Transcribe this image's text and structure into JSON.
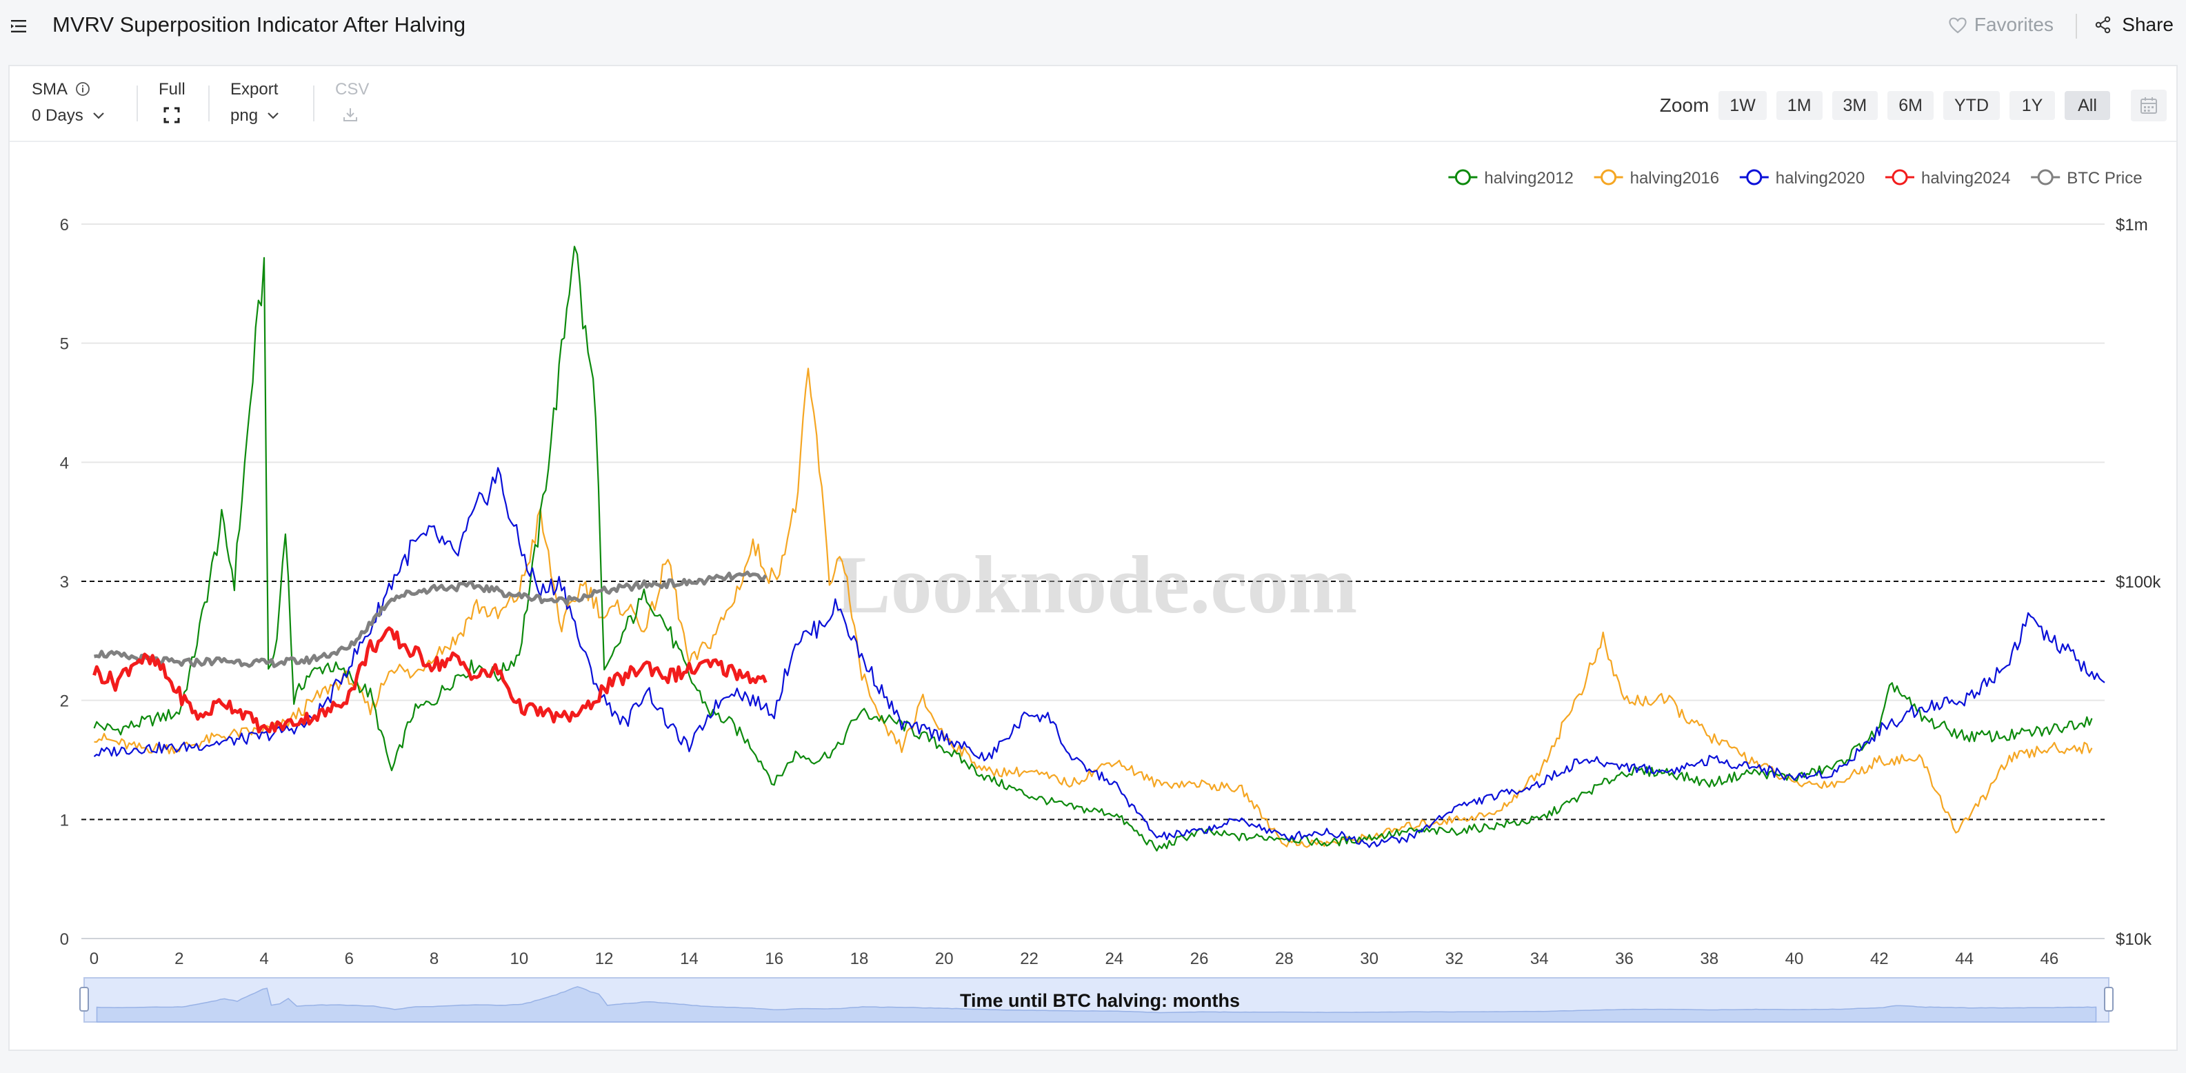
{
  "header": {
    "title": "MVRV Superposition Indicator After Halving",
    "favorites_label": "Favorites",
    "share_label": "Share",
    "icons": [
      "menu-icon",
      "heart-icon",
      "share-icon"
    ]
  },
  "toolbar": {
    "sma_label": "SMA",
    "sma_value": "0 Days",
    "full_label": "Full",
    "export_label": "Export",
    "export_value": "png",
    "csv_label": "CSV",
    "zoom_label": "Zoom",
    "zoom_options": [
      "1W",
      "1M",
      "3M",
      "6M",
      "YTD",
      "1Y",
      "All"
    ],
    "zoom_active": "All"
  },
  "watermark": "Looknode.com",
  "chart_data": {
    "type": "line",
    "title": "",
    "xlabel": "Time until BTC halving: months",
    "ylabel": "",
    "x_range": [
      -0.3,
      47.3
    ],
    "x_ticks": [
      0,
      2,
      4,
      6,
      8,
      10,
      12,
      14,
      16,
      18,
      20,
      22,
      24,
      26,
      28,
      30,
      32,
      34,
      36,
      38,
      40,
      42,
      44,
      46
    ],
    "y_left": {
      "range": [
        0,
        6
      ],
      "ticks": [
        0,
        1,
        2,
        3,
        4,
        5,
        6
      ]
    },
    "y_right": {
      "scale": "log",
      "range": [
        10000,
        1000000
      ],
      "tick_labels": [
        "$10k",
        "$100k",
        "$1m"
      ],
      "tick_values": [
        10000,
        100000,
        1000000
      ]
    },
    "reference_lines": [
      1,
      3
    ],
    "grid": true,
    "legend_position": "top-right",
    "series": [
      {
        "name": "halving2012",
        "color": "#0d8a0d",
        "axis": "left",
        "points": [
          [
            0,
            1.8
          ],
          [
            0.5,
            1.75
          ],
          [
            1,
            1.8
          ],
          [
            1.5,
            1.85
          ],
          [
            2,
            1.9
          ],
          [
            2.3,
            2.3
          ],
          [
            2.6,
            2.8
          ],
          [
            3,
            3.5
          ],
          [
            3.3,
            3.0
          ],
          [
            3.6,
            4.2
          ],
          [
            3.8,
            5.0
          ],
          [
            4,
            5.65
          ],
          [
            4.1,
            2.2
          ],
          [
            4.3,
            2.5
          ],
          [
            4.5,
            3.5
          ],
          [
            4.7,
            2.0
          ],
          [
            5,
            2.2
          ],
          [
            5.5,
            2.3
          ],
          [
            6,
            2.2
          ],
          [
            6.5,
            2.05
          ],
          [
            7,
            1.4
          ],
          [
            7.5,
            1.9
          ],
          [
            8,
            2.0
          ],
          [
            8.5,
            2.2
          ],
          [
            9,
            2.3
          ],
          [
            9.5,
            2.2
          ],
          [
            10,
            2.4
          ],
          [
            10.5,
            3.5
          ],
          [
            11,
            4.9
          ],
          [
            11.3,
            5.9
          ],
          [
            11.5,
            5.2
          ],
          [
            11.8,
            4.5
          ],
          [
            12,
            2.2
          ],
          [
            12.5,
            2.6
          ],
          [
            13,
            2.9
          ],
          [
            13.5,
            2.6
          ],
          [
            14,
            2.2
          ],
          [
            14.5,
            1.9
          ],
          [
            15,
            1.8
          ],
          [
            15.5,
            1.6
          ],
          [
            16,
            1.3
          ],
          [
            16.5,
            1.55
          ],
          [
            17,
            1.5
          ],
          [
            17.5,
            1.6
          ],
          [
            18,
            1.9
          ],
          [
            19,
            1.8
          ],
          [
            20,
            1.6
          ],
          [
            21,
            1.35
          ],
          [
            22,
            1.2
          ],
          [
            23,
            1.1
          ],
          [
            24,
            1.05
          ],
          [
            25,
            0.75
          ],
          [
            26,
            0.9
          ],
          [
            27,
            0.85
          ],
          [
            28,
            0.85
          ],
          [
            29,
            0.8
          ],
          [
            30,
            0.85
          ],
          [
            31,
            0.9
          ],
          [
            32,
            0.9
          ],
          [
            33,
            0.95
          ],
          [
            34,
            1.0
          ],
          [
            35,
            1.2
          ],
          [
            36,
            1.4
          ],
          [
            37,
            1.4
          ],
          [
            38,
            1.3
          ],
          [
            39,
            1.4
          ],
          [
            40,
            1.35
          ],
          [
            41,
            1.45
          ],
          [
            42,
            1.75
          ],
          [
            42.3,
            2.15
          ],
          [
            43,
            1.85
          ],
          [
            44,
            1.7
          ],
          [
            45,
            1.7
          ],
          [
            46,
            1.75
          ],
          [
            47,
            1.85
          ]
        ]
      },
      {
        "name": "halving2016",
        "color": "#f5a623",
        "axis": "left",
        "points": [
          [
            0,
            1.7
          ],
          [
            1,
            1.6
          ],
          [
            2,
            1.6
          ],
          [
            3,
            1.7
          ],
          [
            4,
            1.75
          ],
          [
            4.5,
            1.8
          ],
          [
            5,
            1.95
          ],
          [
            5.5,
            2.1
          ],
          [
            6,
            2.2
          ],
          [
            6.5,
            1.9
          ],
          [
            7,
            2.3
          ],
          [
            7.5,
            2.2
          ],
          [
            8,
            2.4
          ],
          [
            8.5,
            2.5
          ],
          [
            9,
            2.8
          ],
          [
            9.5,
            2.7
          ],
          [
            10,
            2.9
          ],
          [
            10.5,
            3.55
          ],
          [
            11,
            2.6
          ],
          [
            11.5,
            3.0
          ],
          [
            12,
            2.7
          ],
          [
            12.5,
            2.8
          ],
          [
            13,
            2.6
          ],
          [
            13.5,
            3.2
          ],
          [
            14,
            2.3
          ],
          [
            14.5,
            2.5
          ],
          [
            15,
            2.8
          ],
          [
            15.5,
            3.3
          ],
          [
            16,
            3.0
          ],
          [
            16.5,
            3.6
          ],
          [
            16.8,
            4.7
          ],
          [
            17,
            4.2
          ],
          [
            17.3,
            3.0
          ],
          [
            17.6,
            3.25
          ],
          [
            18,
            2.3
          ],
          [
            18.5,
            1.8
          ],
          [
            19,
            1.6
          ],
          [
            19.5,
            2.0
          ],
          [
            20,
            1.7
          ],
          [
            21,
            1.4
          ],
          [
            22,
            1.4
          ],
          [
            23,
            1.3
          ],
          [
            24,
            1.5
          ],
          [
            25,
            1.3
          ],
          [
            26,
            1.3
          ],
          [
            27,
            1.25
          ],
          [
            28,
            0.8
          ],
          [
            29,
            0.8
          ],
          [
            30,
            0.85
          ],
          [
            31,
            0.95
          ],
          [
            32,
            1.0
          ],
          [
            33,
            1.05
          ],
          [
            34,
            1.4
          ],
          [
            35,
            2.1
          ],
          [
            35.5,
            2.5
          ],
          [
            36,
            2.0
          ],
          [
            36.5,
            2.0
          ],
          [
            37,
            2.0
          ],
          [
            38,
            1.7
          ],
          [
            39,
            1.5
          ],
          [
            40,
            1.3
          ],
          [
            41,
            1.3
          ],
          [
            42,
            1.5
          ],
          [
            43,
            1.5
          ],
          [
            43.8,
            0.9
          ],
          [
            44.5,
            1.2
          ],
          [
            45,
            1.5
          ],
          [
            46,
            1.6
          ],
          [
            47,
            1.6
          ]
        ]
      },
      {
        "name": "halving2020",
        "color": "#0a10d8",
        "axis": "left",
        "points": [
          [
            0,
            1.55
          ],
          [
            1,
            1.6
          ],
          [
            2,
            1.6
          ],
          [
            3,
            1.65
          ],
          [
            4,
            1.7
          ],
          [
            5,
            1.8
          ],
          [
            5.5,
            2.0
          ],
          [
            6,
            2.3
          ],
          [
            6.5,
            2.6
          ],
          [
            7,
            3.0
          ],
          [
            7.5,
            3.3
          ],
          [
            8,
            3.4
          ],
          [
            8.5,
            3.2
          ],
          [
            9,
            3.6
          ],
          [
            9.5,
            3.9
          ],
          [
            10,
            3.3
          ],
          [
            10.5,
            2.9
          ],
          [
            11,
            3.0
          ],
          [
            11.5,
            2.4
          ],
          [
            12,
            2.0
          ],
          [
            12.5,
            1.8
          ],
          [
            13,
            2.1
          ],
          [
            13.5,
            1.8
          ],
          [
            14,
            1.6
          ],
          [
            14.5,
            1.9
          ],
          [
            15,
            2.1
          ],
          [
            15.5,
            2.0
          ],
          [
            16,
            1.9
          ],
          [
            16.5,
            2.5
          ],
          [
            17,
            2.6
          ],
          [
            17.5,
            2.8
          ],
          [
            18,
            2.4
          ],
          [
            19,
            1.8
          ],
          [
            20,
            1.7
          ],
          [
            21,
            1.5
          ],
          [
            22,
            1.9
          ],
          [
            22.5,
            1.85
          ],
          [
            23,
            1.5
          ],
          [
            24,
            1.3
          ],
          [
            25,
            0.85
          ],
          [
            26,
            0.9
          ],
          [
            27,
            1.0
          ],
          [
            28,
            0.85
          ],
          [
            29,
            0.9
          ],
          [
            30,
            0.8
          ],
          [
            31,
            0.85
          ],
          [
            32,
            1.1
          ],
          [
            33,
            1.2
          ],
          [
            34,
            1.3
          ],
          [
            35,
            1.5
          ],
          [
            36,
            1.45
          ],
          [
            37,
            1.4
          ],
          [
            38,
            1.5
          ],
          [
            39,
            1.45
          ],
          [
            40,
            1.35
          ],
          [
            41,
            1.4
          ],
          [
            42,
            1.75
          ],
          [
            43,
            1.95
          ],
          [
            44,
            2.0
          ],
          [
            45,
            2.3
          ],
          [
            45.5,
            2.7
          ],
          [
            46,
            2.5
          ],
          [
            46.5,
            2.4
          ],
          [
            47,
            2.2
          ],
          [
            47.3,
            2.15
          ]
        ]
      },
      {
        "name": "halving2024",
        "color": "#f21c1c",
        "axis": "left",
        "points": [
          [
            0,
            2.25
          ],
          [
            0.5,
            2.15
          ],
          [
            1,
            2.35
          ],
          [
            1.5,
            2.3
          ],
          [
            2,
            2.05
          ],
          [
            2.5,
            1.85
          ],
          [
            3,
            2.0
          ],
          [
            3.5,
            1.9
          ],
          [
            4,
            1.75
          ],
          [
            4.5,
            1.8
          ],
          [
            5,
            1.85
          ],
          [
            5.5,
            1.9
          ],
          [
            6,
            2.05
          ],
          [
            6.5,
            2.45
          ],
          [
            7,
            2.55
          ],
          [
            7.5,
            2.4
          ],
          [
            8,
            2.3
          ],
          [
            8.5,
            2.35
          ],
          [
            9,
            2.2
          ],
          [
            9.5,
            2.25
          ],
          [
            10,
            1.95
          ],
          [
            10.5,
            1.9
          ],
          [
            11,
            1.85
          ],
          [
            11.5,
            1.9
          ],
          [
            12,
            2.1
          ],
          [
            12.5,
            2.2
          ],
          [
            13,
            2.3
          ],
          [
            13.5,
            2.2
          ],
          [
            14,
            2.25
          ],
          [
            14.5,
            2.3
          ],
          [
            15,
            2.25
          ],
          [
            15.5,
            2.2
          ],
          [
            15.8,
            2.15
          ]
        ]
      },
      {
        "name": "BTC Price",
        "color": "#808080",
        "axis": "right",
        "points": [
          [
            0,
            63000
          ],
          [
            1,
            61000
          ],
          [
            2,
            59000
          ],
          [
            3,
            60000
          ],
          [
            4,
            59000
          ],
          [
            5,
            60000
          ],
          [
            6,
            65000
          ],
          [
            7,
            90000
          ],
          [
            8,
            96000
          ],
          [
            9,
            97000
          ],
          [
            10,
            91000
          ],
          [
            11,
            88000
          ],
          [
            12,
            94000
          ],
          [
            13,
            98000
          ],
          [
            14,
            99000
          ],
          [
            15,
            103000
          ],
          [
            15.8,
            104000
          ]
        ]
      }
    ],
    "navigator": {
      "visible": true,
      "range": [
        -0.3,
        47.3
      ]
    }
  }
}
